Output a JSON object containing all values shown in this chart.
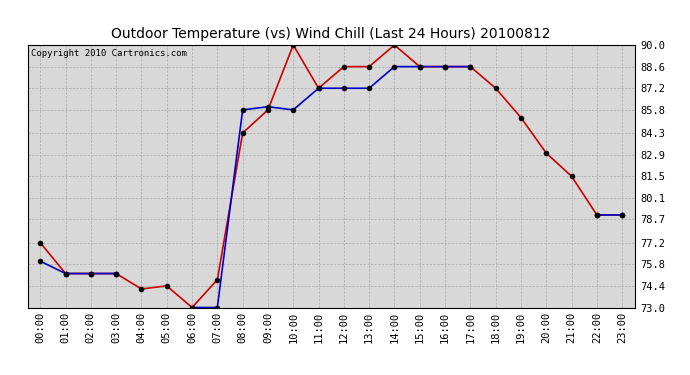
{
  "title": "Outdoor Temperature (vs) Wind Chill (Last 24 Hours) 20100812",
  "copyright": "Copyright 2010 Cartronics.com",
  "x_labels": [
    "00:00",
    "01:00",
    "02:00",
    "03:00",
    "04:00",
    "05:00",
    "06:00",
    "07:00",
    "08:00",
    "09:00",
    "10:00",
    "11:00",
    "12:00",
    "13:00",
    "14:00",
    "15:00",
    "16:00",
    "17:00",
    "18:00",
    "19:00",
    "20:00",
    "21:00",
    "22:00",
    "23:00"
  ],
  "red_y": [
    77.2,
    75.2,
    75.2,
    75.2,
    74.2,
    74.4,
    73.0,
    74.8,
    84.3,
    85.8,
    90.0,
    87.2,
    88.6,
    88.6,
    90.0,
    88.6,
    88.6,
    88.6,
    87.2,
    85.3,
    83.0,
    81.5,
    79.0,
    79.0
  ],
  "blue_segments": [
    {
      "x": [
        0,
        1,
        2,
        3
      ],
      "y": [
        76.0,
        75.2,
        75.2,
        75.2
      ]
    },
    {
      "x": [
        6,
        7,
        8,
        9,
        10,
        11,
        12,
        13,
        14,
        15,
        16,
        17
      ],
      "y": [
        73.0,
        73.0,
        85.8,
        86.0,
        85.8,
        87.2,
        87.2,
        87.2,
        88.6,
        88.6,
        88.6,
        88.6
      ]
    },
    {
      "x": [
        22,
        23
      ],
      "y": [
        79.0,
        79.0
      ]
    }
  ],
  "ylim": [
    73.0,
    90.0
  ],
  "yticks": [
    73.0,
    74.4,
    75.8,
    77.2,
    78.7,
    80.1,
    81.5,
    82.9,
    84.3,
    85.8,
    87.2,
    88.6,
    90.0
  ],
  "bg_color": "#d8d8d8",
  "fig_bg_color": "#ffffff",
  "red_color": "#cc0000",
  "blue_color": "#0000cc",
  "grid_color": "#aaaaaa",
  "title_fontsize": 10,
  "axis_fontsize": 7.5,
  "copyright_fontsize": 6.5
}
